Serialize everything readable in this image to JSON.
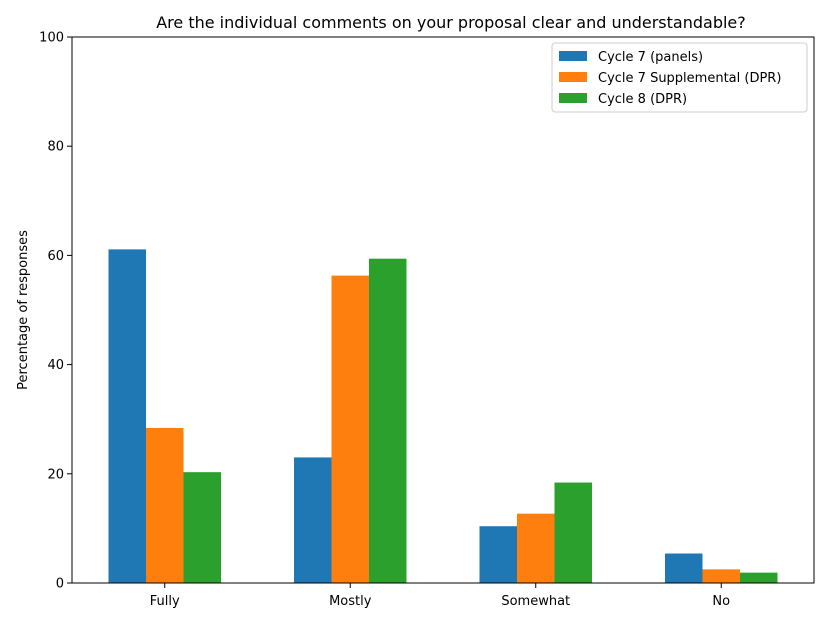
{
  "chart_data": {
    "type": "bar",
    "title": "Are the individual comments on your proposal clear and understandable?",
    "xlabel": "",
    "ylabel": "Percentage of responses",
    "categories": [
      "Fully",
      "Mostly",
      "Somewhat",
      "No"
    ],
    "series": [
      {
        "name": "Cycle 7 (panels)",
        "color": "#1f77b4",
        "values": [
          61.1,
          23.0,
          10.4,
          5.4
        ]
      },
      {
        "name": "Cycle 7 Supplemental (DPR)",
        "color": "#ff7f0e",
        "values": [
          28.4,
          56.3,
          12.7,
          2.5
        ]
      },
      {
        "name": "Cycle 8 (DPR)",
        "color": "#2ca02c",
        "values": [
          20.3,
          59.4,
          18.4,
          1.9
        ]
      }
    ],
    "ylim": [
      0,
      100
    ],
    "yticks": [
      0,
      20,
      40,
      60,
      80,
      100
    ],
    "grid": false,
    "legend": "top-right"
  }
}
